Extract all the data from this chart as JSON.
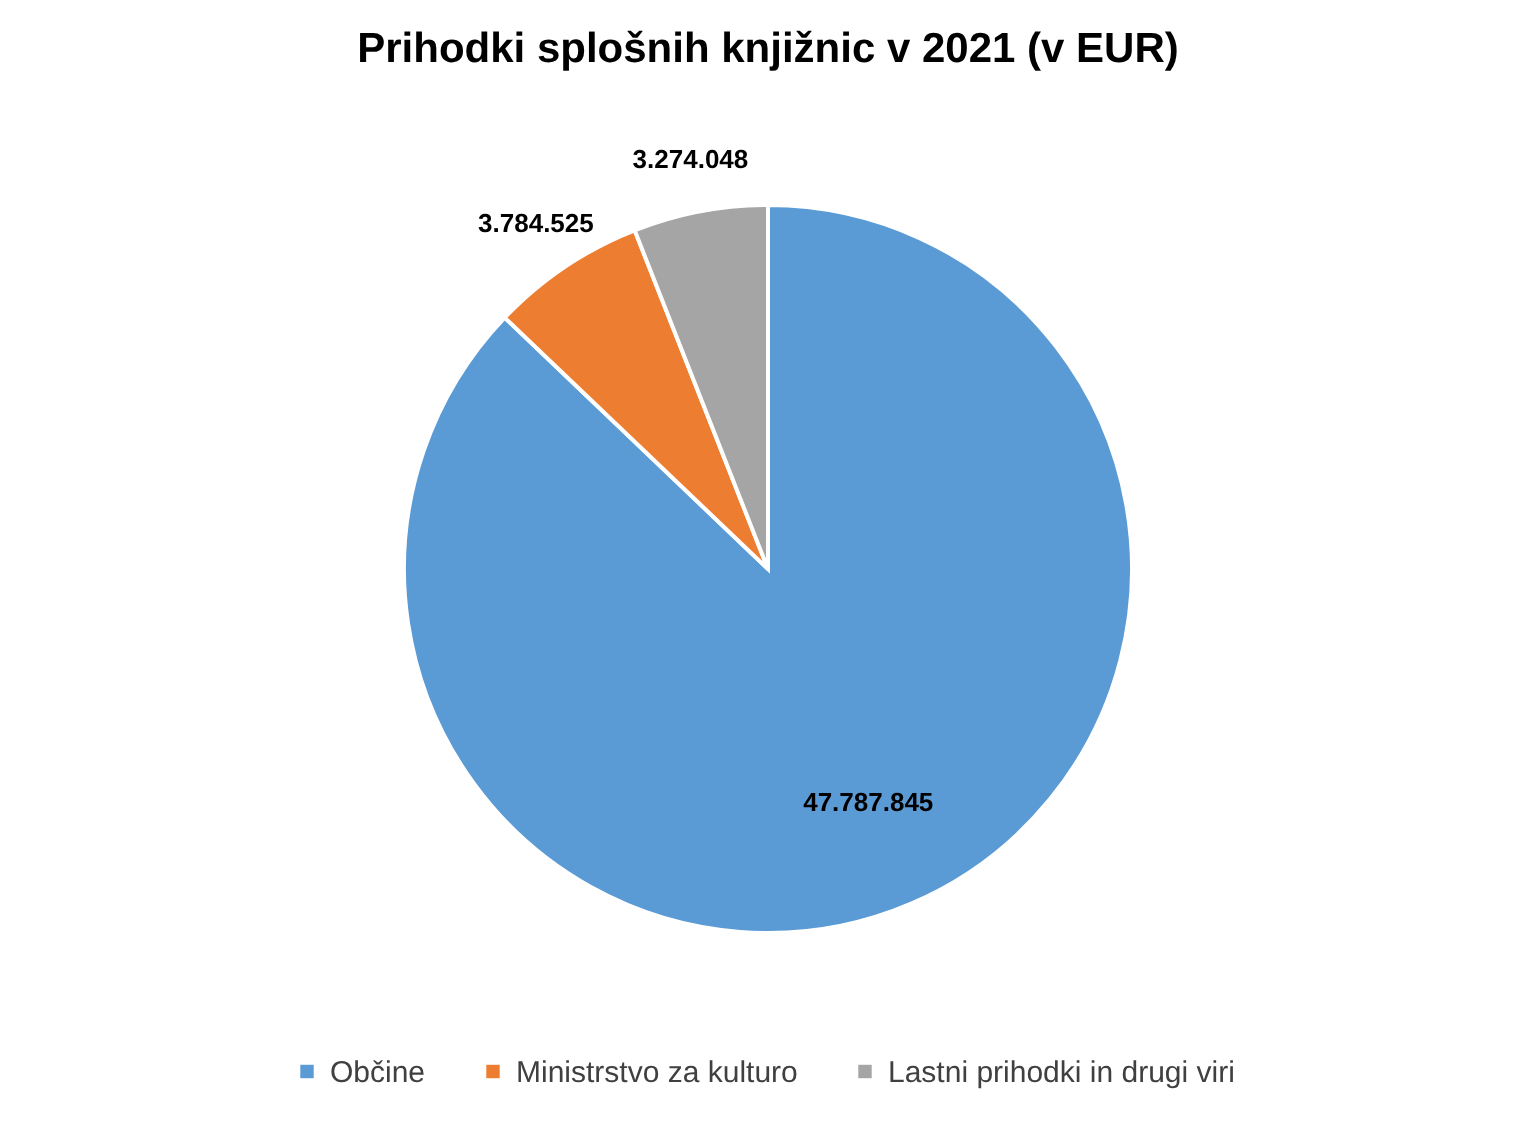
{
  "chart_data": {
    "type": "pie",
    "title": "Prihodki splošnih knjižnic v 2021 (v EUR)",
    "categories": [
      "Občine",
      "Ministrstvo za kulturo",
      "Lastni prihodki in drugi viri"
    ],
    "values": [
      47787845,
      3784525,
      3274048
    ],
    "value_labels": [
      "47.787.845",
      "3.784.525",
      "3.274.048"
    ],
    "colors": [
      "#5b9bd5",
      "#ed7d31",
      "#a5a5a5"
    ],
    "legend": "bottom"
  }
}
